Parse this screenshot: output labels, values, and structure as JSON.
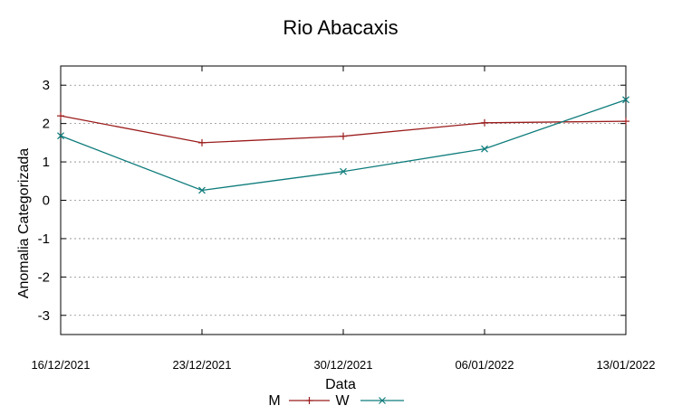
{
  "chart_data": {
    "type": "line",
    "title": "Rio Abacaxis",
    "xlabel": "Data",
    "ylabel": "Anomalia Categorizada",
    "categories": [
      "16/12/2021",
      "23/12/2021",
      "30/12/2021",
      "06/01/2022",
      "13/01/2022"
    ],
    "ylim": [
      -3.5,
      3.5
    ],
    "yticks": [
      "3",
      "2",
      "1",
      "0",
      "-1",
      "-2",
      "-3"
    ],
    "grid": true,
    "legend_position": "bottom-center",
    "series": [
      {
        "name": "M",
        "values": [
          2.2,
          1.5,
          1.67,
          2.02,
          2.06
        ],
        "color": "#9b1c1c",
        "marker": "plus"
      },
      {
        "name": "W",
        "values": [
          1.68,
          0.26,
          0.75,
          1.34,
          2.62
        ],
        "color": "#0e7c7b",
        "marker": "cross"
      }
    ]
  }
}
